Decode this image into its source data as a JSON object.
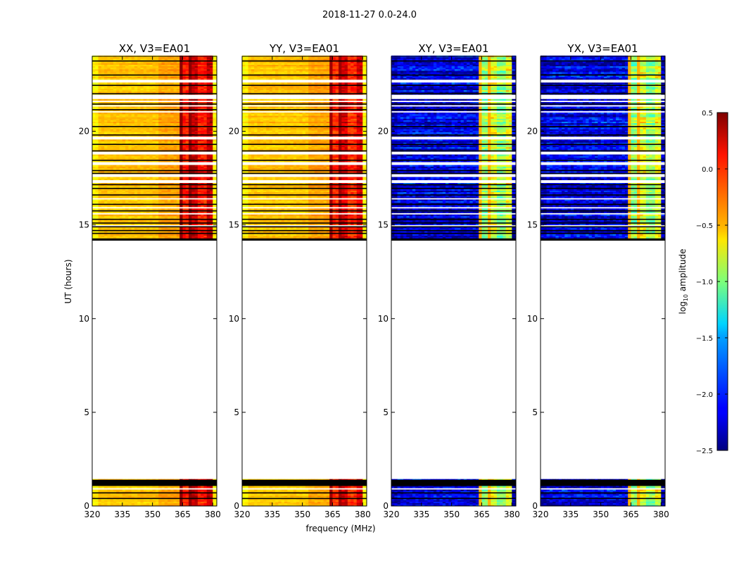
{
  "figure_title": "2018-11-27 0.0-24.0",
  "colors": {
    "data_gap": "#ffffff",
    "flag_band": "#000000",
    "axis": "#000000"
  },
  "chart_data": {
    "type": "heatmap",
    "title": "2018-11-27 0.0-24.0",
    "colormap": "jet",
    "shared_x": {
      "label": "frequency (MHz)",
      "range": [
        320,
        382
      ],
      "ticks": [
        320,
        335,
        350,
        365,
        380
      ]
    },
    "shared_y": {
      "label": "UT (hours)",
      "range": [
        0,
        24
      ],
      "ticks": [
        0,
        5,
        10,
        15,
        20
      ]
    },
    "data_coverage_hours": [
      [
        0,
        1.4
      ],
      [
        14.2,
        24
      ]
    ],
    "bright_band_mhz": [
      363,
      380
    ],
    "panels": [
      {
        "title": "XX, V3=EA01",
        "polarization": "XX",
        "baseline_level": -0.45,
        "band_level": 0.1
      },
      {
        "title": "YY, V3=EA01",
        "polarization": "YY",
        "baseline_level": -0.45,
        "band_level": 0.05
      },
      {
        "title": "XY, V3=EA01",
        "polarization": "XY",
        "baseline_level": -2.2,
        "band_level": -0.9
      },
      {
        "title": "YX, V3=EA01",
        "polarization": "YX",
        "baseline_level": -2.2,
        "band_level": -0.9
      }
    ],
    "colorbar": {
      "label_prefix": "log",
      "label_sub": "10",
      "label_suffix": " amplitude",
      "range": [
        -2.5,
        0.5
      ],
      "ticks": [
        "0.5",
        "0.0",
        "−0.5",
        "−1.0",
        "−1.5",
        "−2.0",
        "−2.5"
      ],
      "tick_values": [
        0.5,
        0.0,
        -0.5,
        -1.0,
        -1.5,
        -2.0,
        -2.5
      ]
    }
  }
}
